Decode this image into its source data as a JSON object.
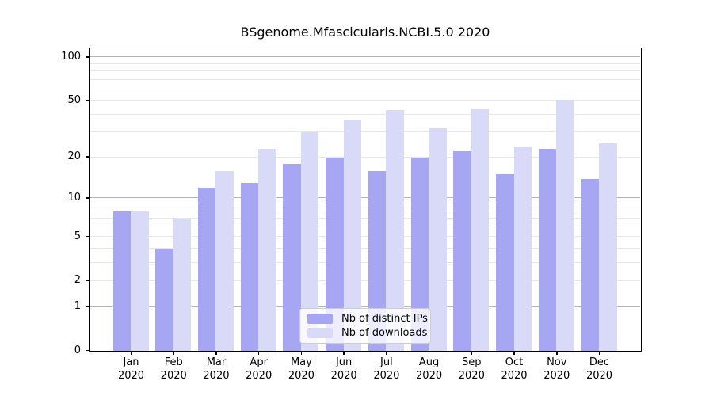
{
  "chart_data": {
    "type": "bar",
    "title": "BSgenome.Mfascicularis.NCBI.5.0 2020",
    "categories": [
      "Jan",
      "Feb",
      "Mar",
      "Apr",
      "May",
      "Jun",
      "Jul",
      "Aug",
      "Sep",
      "Oct",
      "Nov",
      "Dec"
    ],
    "xtick_year": "2020",
    "series": [
      {
        "name": "Nb of distinct IPs",
        "color": "#a6a6f2",
        "values": [
          8,
          4,
          12,
          13,
          18,
          20,
          16,
          20,
          22,
          15,
          23,
          14
        ]
      },
      {
        "name": "Nb of downloads",
        "color": "#d9d9f8",
        "values": [
          8,
          7,
          16,
          23,
          30,
          37,
          43,
          32,
          44,
          24,
          51,
          25
        ]
      }
    ],
    "yscale": "log1p",
    "ylim": [
      0,
      114
    ],
    "yticks": [
      0,
      1,
      2,
      5,
      10,
      20,
      50,
      100
    ],
    "gridlines_minor": [
      2,
      3,
      4,
      5,
      6,
      7,
      8,
      9,
      20,
      30,
      40,
      50,
      60,
      70,
      80,
      90
    ],
    "gridlines_major": [
      1,
      10,
      100
    ],
    "grid_minor_color": "#e7e7e7",
    "grid_major_color": "#b3b3b3",
    "legend_position": "lower center",
    "grid": true
  }
}
